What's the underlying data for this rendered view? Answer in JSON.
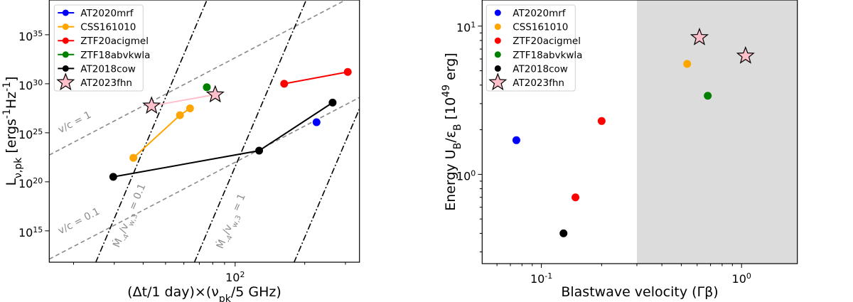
{
  "chart_data": [
    {
      "type": "line",
      "xlabel": "(Δt/1 day)×(ν_{pk}/5 GHz)",
      "ylabel": "L_{ν,pk} [ergs^{-1}Hz^{-1}]",
      "xscale": "log",
      "yscale": "log",
      "xlim": [
        15.7,
        345
      ],
      "ylim": [
        630000000000.0,
        3.5e+38
      ],
      "x_ticks": [
        100
      ],
      "x_tick_labels": [
        "10^2"
      ],
      "y_ticks": [
        1000000000000000.0,
        1e+20,
        1e+25,
        1e+30,
        1e+35
      ],
      "y_tick_labels": [
        "10^15",
        "10^20",
        "10^25",
        "10^30",
        "10^35"
      ],
      "grid": false,
      "legend": "top-left",
      "series": [
        {
          "name": "AT2020mrf",
          "color": "#0000ff",
          "marker": "circle",
          "points": [
            [
              225,
              1.2e+26
            ]
          ]
        },
        {
          "name": "CSS161010",
          "color": "#ffa500",
          "marker": "circle",
          "points": [
            [
              36.3,
              2.8e+22
            ],
            [
              57.7,
              6.2e+26
            ],
            [
              63.8,
              3.1e+27
            ]
          ]
        },
        {
          "name": "ZTF20acigmel",
          "color": "#ff0000",
          "marker": "circle",
          "points": [
            [
              163,
              1e+30
            ],
            [
              307,
              1.6e+31
            ]
          ]
        },
        {
          "name": "ZTF18abvkwla",
          "color": "#008000",
          "marker": "circle",
          "points": [
            [
              75.4,
              4.4e+29
            ]
          ]
        },
        {
          "name": "AT2018cow",
          "color": "#000000",
          "marker": "circle",
          "points": [
            [
              29.7,
              3.2e+20
            ],
            [
              127,
              1.5e+23
            ],
            [
              264,
              1.2e+28
            ]
          ]
        },
        {
          "name": "AT2023fhn",
          "color": "#ffc0cb",
          "marker": "star",
          "points": [
            [
              43.5,
              5.6e+27
            ],
            [
              82,
              7.8e+28
            ]
          ]
        }
      ],
      "reference_lines": [
        {
          "label": "v/c = 1",
          "style": "dashed",
          "color": "#8a8a8a",
          "points": [
            [
              15.7,
              5.4e+22
            ],
            [
              294,
              2.7e+38
            ]
          ]
        },
        {
          "label": "v/c = 0.1",
          "style": "dashed",
          "color": "#8a8a8a",
          "points": [
            [
              15.7,
              1300000000000.0
            ],
            [
              345,
              4e+28
            ]
          ]
        },
        {
          "label": "Ṁ_{-4}/v_{w,3} = 0.1",
          "style": "dashdot",
          "color": "#000000",
          "points": [
            [
              24.9,
              550000000000.0
            ],
            [
              75.5,
              3.5e+38
            ]
          ]
        },
        {
          "label": "Ṁ_{-4}/v_{w,3} = 1",
          "style": "dashdot",
          "color": "#000000",
          "points": [
            [
              66.5,
              550000000000.0
            ],
            [
              203,
              3.5e+38
            ]
          ]
        },
        {
          "label": "",
          "style": "dashdot",
          "color": "#000000",
          "points": [
            [
              179.5,
              550000000000.0
            ],
            [
              345,
              2.8e+27
            ]
          ]
        }
      ]
    },
    {
      "type": "scatter",
      "xlabel": "Blastwave velocity (Γβ)",
      "ylabel": "Energy U_{B}/ε_{B} [10^{49} erg]",
      "xscale": "log",
      "yscale": "log",
      "xlim": [
        0.0506,
        1.9
      ],
      "ylim": [
        0.25,
        15
      ],
      "x_ticks": [
        0.1,
        1
      ],
      "x_tick_labels": [
        "10^-1",
        "10^0"
      ],
      "y_ticks": [
        1,
        10
      ],
      "y_tick_labels": [
        "10^0",
        "10^1"
      ],
      "grid": false,
      "legend": "top-left",
      "shaded_region": {
        "x_from": 0.3,
        "x_to": 1.9,
        "color": "#dcdcdc"
      },
      "series": [
        {
          "name": "AT2020mrf",
          "color": "#0000ff",
          "marker": "circle",
          "points": [
            [
              0.075,
              1.7
            ]
          ]
        },
        {
          "name": "CSS161010",
          "color": "#ffa500",
          "marker": "circle",
          "points": [
            [
              0.535,
              5.56
            ]
          ]
        },
        {
          "name": "ZTF20acigmel",
          "color": "#ff0000",
          "marker": "circle",
          "points": [
            [
              0.2,
              2.29
            ],
            [
              0.148,
              0.7
            ]
          ]
        },
        {
          "name": "ZTF18abvkwla",
          "color": "#008000",
          "marker": "circle",
          "points": [
            [
              0.678,
              3.39
            ]
          ]
        },
        {
          "name": "AT2018cow",
          "color": "#000000",
          "marker": "circle",
          "points": [
            [
              0.129,
              0.4
            ]
          ]
        },
        {
          "name": "AT2023fhn",
          "color": "#ffc0cb",
          "marker": "star",
          "points": [
            [
              0.616,
              8.39
            ],
            [
              1.047,
              6.3
            ]
          ]
        }
      ]
    }
  ]
}
